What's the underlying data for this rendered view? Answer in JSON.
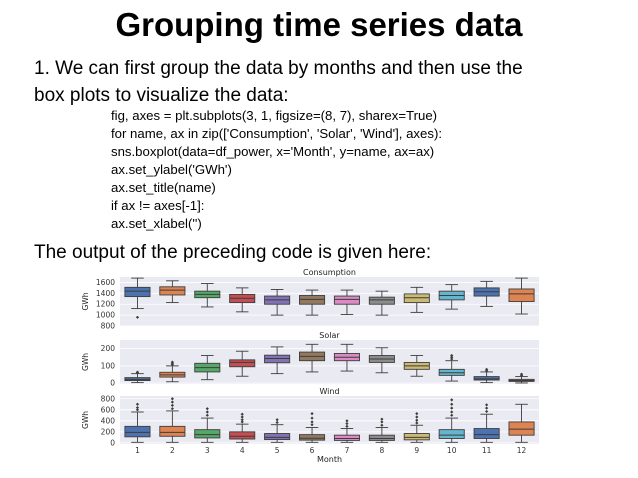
{
  "slide": {
    "title": "Grouping time series data",
    "intro_line1": "1. We can first group the data by months and then use the",
    "intro_line2": "box plots to visualize the data:",
    "code_lines": [
      "fig, axes = plt.subplots(3, 1, figsize=(8, 7), sharex=True)",
      "for name, ax in zip(['Consumption', 'Solar', 'Wind'], axes):",
      "sns.boxplot(data=df_power, x='Month', y=name, ax=ax)",
      "ax.set_ylabel('GWh')",
      "ax.set_title(name)",
      "if ax != axes[-1]:",
      "ax.set_xlabel('')"
    ],
    "outro": "The output of the preceding code is given here:"
  },
  "colors": {
    "panel_bg": "#eaeaf2",
    "grid": "#ffffff",
    "box_blue": "#4c72b0",
    "box_orange": "#dd8452",
    "box_green": "#55a868",
    "box_red": "#c44e52",
    "box_purple": "#8172b3",
    "box_brown": "#937860",
    "box_pink": "#da8bc3",
    "box_gray": "#8c8c8c",
    "box_olive": "#ccb974",
    "box_cyan": "#64b5cd"
  },
  "chart_data": [
    {
      "type": "box",
      "title": "Consumption",
      "ylabel": "GWh",
      "xlabel": "",
      "ylim": [
        800,
        1700
      ],
      "yticks": [
        800,
        1000,
        1200,
        1400,
        1600
      ],
      "categories": [
        "1",
        "2",
        "3",
        "4",
        "5",
        "6",
        "7",
        "8",
        "9",
        "10",
        "11",
        "12"
      ],
      "boxes": [
        {
          "whislo": 1120,
          "q1": 1340,
          "med": 1440,
          "q3": 1510,
          "whishi": 1680,
          "fliers": [
            960
          ]
        },
        {
          "whislo": 1230,
          "q1": 1370,
          "med": 1460,
          "q3": 1520,
          "whishi": 1630,
          "fliers": []
        },
        {
          "whislo": 1150,
          "q1": 1320,
          "med": 1380,
          "q3": 1440,
          "whishi": 1580,
          "fliers": []
        },
        {
          "whislo": 1060,
          "q1": 1230,
          "med": 1310,
          "q3": 1380,
          "whishi": 1500,
          "fliers": []
        },
        {
          "whislo": 1000,
          "q1": 1200,
          "med": 1280,
          "q3": 1350,
          "whishi": 1470,
          "fliers": []
        },
        {
          "whislo": 1000,
          "q1": 1200,
          "med": 1290,
          "q3": 1360,
          "whishi": 1460,
          "fliers": []
        },
        {
          "whislo": 1010,
          "q1": 1200,
          "med": 1290,
          "q3": 1350,
          "whishi": 1460,
          "fliers": []
        },
        {
          "whislo": 1000,
          "q1": 1200,
          "med": 1280,
          "q3": 1330,
          "whishi": 1440,
          "fliers": []
        },
        {
          "whislo": 1050,
          "q1": 1230,
          "med": 1320,
          "q3": 1390,
          "whishi": 1510,
          "fliers": []
        },
        {
          "whislo": 1110,
          "q1": 1280,
          "med": 1360,
          "q3": 1440,
          "whishi": 1560,
          "fliers": []
        },
        {
          "whislo": 1160,
          "q1": 1350,
          "med": 1430,
          "q3": 1500,
          "whishi": 1620,
          "fliers": []
        },
        {
          "whislo": 1020,
          "q1": 1250,
          "med": 1390,
          "q3": 1480,
          "whishi": 1680,
          "fliers": []
        }
      ]
    },
    {
      "type": "box",
      "title": "Solar",
      "ylabel": "GWh",
      "xlabel": "",
      "ylim": [
        -5,
        250
      ],
      "yticks": [
        0,
        100,
        200
      ],
      "categories": [
        "1",
        "2",
        "3",
        "4",
        "5",
        "6",
        "7",
        "8",
        "9",
        "10",
        "11",
        "12"
      ],
      "boxes": [
        {
          "whislo": 3,
          "q1": 15,
          "med": 22,
          "q3": 32,
          "whishi": 55,
          "fliers": [
            60,
            64
          ]
        },
        {
          "whislo": 8,
          "q1": 35,
          "med": 48,
          "q3": 63,
          "whishi": 100,
          "fliers": [
            108,
            115,
            122
          ]
        },
        {
          "whislo": 20,
          "q1": 65,
          "med": 90,
          "q3": 115,
          "whishi": 160,
          "fliers": []
        },
        {
          "whislo": 40,
          "q1": 95,
          "med": 120,
          "q3": 135,
          "whishi": 185,
          "fliers": []
        },
        {
          "whislo": 55,
          "q1": 118,
          "med": 143,
          "q3": 162,
          "whishi": 210,
          "fliers": []
        },
        {
          "whislo": 65,
          "q1": 130,
          "med": 155,
          "q3": 180,
          "whishi": 225,
          "fliers": []
        },
        {
          "whislo": 70,
          "q1": 130,
          "med": 150,
          "q3": 172,
          "whishi": 225,
          "fliers": []
        },
        {
          "whislo": 60,
          "q1": 120,
          "med": 140,
          "q3": 160,
          "whishi": 205,
          "fliers": []
        },
        {
          "whislo": 40,
          "q1": 80,
          "med": 100,
          "q3": 120,
          "whishi": 160,
          "fliers": []
        },
        {
          "whislo": 12,
          "q1": 45,
          "med": 60,
          "q3": 80,
          "whishi": 130,
          "fliers": [
            140,
            150,
            160
          ]
        },
        {
          "whislo": 3,
          "q1": 18,
          "med": 25,
          "q3": 38,
          "whishi": 65,
          "fliers": [
            72,
            80
          ]
        },
        {
          "whislo": 1,
          "q1": 10,
          "med": 15,
          "q3": 22,
          "whishi": 38,
          "fliers": [
            45,
            52
          ]
        }
      ]
    },
    {
      "type": "box",
      "title": "Wind",
      "ylabel": "GWh",
      "xlabel": "Month",
      "ylim": [
        -20,
        850
      ],
      "yticks": [
        0,
        200,
        400,
        600,
        800
      ],
      "categories": [
        "1",
        "2",
        "3",
        "4",
        "5",
        "6",
        "7",
        "8",
        "9",
        "10",
        "11",
        "12"
      ],
      "boxes": [
        {
          "whislo": 10,
          "q1": 110,
          "med": 190,
          "q3": 300,
          "whishi": 560,
          "fliers": [
            600,
            640,
            700
          ]
        },
        {
          "whislo": 10,
          "q1": 120,
          "med": 190,
          "q3": 300,
          "whishi": 580,
          "fliers": [
            620,
            680,
            740,
            800
          ]
        },
        {
          "whislo": 10,
          "q1": 90,
          "med": 150,
          "q3": 240,
          "whishi": 450,
          "fliers": [
            500,
            560,
            620
          ]
        },
        {
          "whislo": 10,
          "q1": 70,
          "med": 120,
          "q3": 200,
          "whishi": 340,
          "fliers": [
            380,
            420,
            470,
            520
          ]
        },
        {
          "whislo": 10,
          "q1": 60,
          "med": 100,
          "q3": 170,
          "whishi": 330,
          "fliers": [
            370,
            420
          ]
        },
        {
          "whislo": 10,
          "q1": 50,
          "med": 85,
          "q3": 150,
          "whishi": 280,
          "fliers": [
            330,
            380,
            450,
            530
          ]
        },
        {
          "whislo": 10,
          "q1": 45,
          "med": 80,
          "q3": 140,
          "whishi": 260,
          "fliers": [
            300,
            350,
            400
          ]
        },
        {
          "whislo": 10,
          "q1": 45,
          "med": 80,
          "q3": 140,
          "whishi": 280,
          "fliers": [
            320,
            380,
            430
          ]
        },
        {
          "whislo": 10,
          "q1": 55,
          "med": 100,
          "q3": 170,
          "whishi": 320,
          "fliers": [
            360,
            410,
            470,
            530
          ]
        },
        {
          "whislo": 10,
          "q1": 80,
          "med": 140,
          "q3": 240,
          "whishi": 450,
          "fliers": [
            500,
            560,
            630,
            700,
            780
          ]
        },
        {
          "whislo": 10,
          "q1": 80,
          "med": 150,
          "q3": 260,
          "whishi": 520,
          "fliers": [
            570,
            630,
            690
          ]
        },
        {
          "whislo": 10,
          "q1": 140,
          "med": 250,
          "q3": 380,
          "whishi": 700,
          "fliers": []
        }
      ]
    }
  ]
}
